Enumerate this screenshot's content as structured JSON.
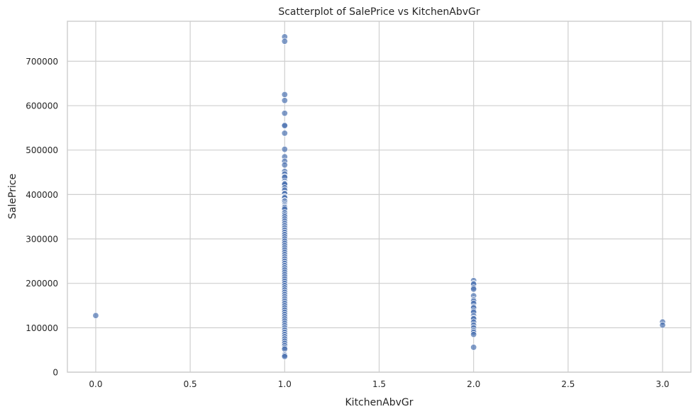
{
  "chart_data": {
    "type": "scatter",
    "title": "Scatterplot of SalePrice vs KitchenAbvGr",
    "xlabel": "KitchenAbvGr",
    "ylabel": "SalePrice",
    "xlim": [
      -0.15,
      3.15
    ],
    "ylim": [
      0,
      790000
    ],
    "xticks": [
      "0.0",
      "0.5",
      "1.0",
      "1.5",
      "2.0",
      "2.5",
      "3.0"
    ],
    "yticks": [
      "0",
      "100000",
      "200000",
      "300000",
      "400000",
      "500000",
      "600000",
      "700000"
    ],
    "grid": true,
    "point_color": "#4c72b0",
    "points": [
      {
        "x": 0,
        "y": 127500
      },
      {
        "x": 1,
        "y": 755000
      },
      {
        "x": 1,
        "y": 745000
      },
      {
        "x": 1,
        "y": 625000
      },
      {
        "x": 1,
        "y": 611657
      },
      {
        "x": 1,
        "y": 582933
      },
      {
        "x": 1,
        "y": 556581
      },
      {
        "x": 1,
        "y": 555000
      },
      {
        "x": 1,
        "y": 538000
      },
      {
        "x": 1,
        "y": 501837
      },
      {
        "x": 1,
        "y": 485000
      },
      {
        "x": 1,
        "y": 475000
      },
      {
        "x": 1,
        "y": 466500
      },
      {
        "x": 1,
        "y": 451950
      },
      {
        "x": 1,
        "y": 446261
      },
      {
        "x": 1,
        "y": 440000
      },
      {
        "x": 1,
        "y": 438780
      },
      {
        "x": 1,
        "y": 430000
      },
      {
        "x": 1,
        "y": 426000
      },
      {
        "x": 1,
        "y": 424870
      },
      {
        "x": 1,
        "y": 423000
      },
      {
        "x": 1,
        "y": 415298
      },
      {
        "x": 1,
        "y": 410000
      },
      {
        "x": 1,
        "y": 402861
      },
      {
        "x": 1,
        "y": 402000
      },
      {
        "x": 1,
        "y": 395192
      },
      {
        "x": 1,
        "y": 394617
      },
      {
        "x": 1,
        "y": 392500
      },
      {
        "x": 1,
        "y": 386250
      },
      {
        "x": 1,
        "y": 385000
      },
      {
        "x": 1,
        "y": 381000
      },
      {
        "x": 1,
        "y": 377426
      },
      {
        "x": 1,
        "y": 375000
      },
      {
        "x": 1,
        "y": 372402
      },
      {
        "x": 1,
        "y": 370878
      },
      {
        "x": 1,
        "y": 367294
      },
      {
        "x": 1,
        "y": 359100
      },
      {
        "x": 1,
        "y": 354000
      },
      {
        "x": 1,
        "y": 350000
      },
      {
        "x": 1,
        "y": 345000
      },
      {
        "x": 1,
        "y": 340000
      },
      {
        "x": 1,
        "y": 335000
      },
      {
        "x": 1,
        "y": 330000
      },
      {
        "x": 1,
        "y": 325000
      },
      {
        "x": 1,
        "y": 320000
      },
      {
        "x": 1,
        "y": 315000
      },
      {
        "x": 1,
        "y": 310000
      },
      {
        "x": 1,
        "y": 305000
      },
      {
        "x": 1,
        "y": 300000
      },
      {
        "x": 1,
        "y": 295000
      },
      {
        "x": 1,
        "y": 290000
      },
      {
        "x": 1,
        "y": 285000
      },
      {
        "x": 1,
        "y": 280000
      },
      {
        "x": 1,
        "y": 275000
      },
      {
        "x": 1,
        "y": 270000
      },
      {
        "x": 1,
        "y": 265000
      },
      {
        "x": 1,
        "y": 260000
      },
      {
        "x": 1,
        "y": 255000
      },
      {
        "x": 1,
        "y": 250000
      },
      {
        "x": 1,
        "y": 245000
      },
      {
        "x": 1,
        "y": 240000
      },
      {
        "x": 1,
        "y": 235000
      },
      {
        "x": 1,
        "y": 230000
      },
      {
        "x": 1,
        "y": 225000
      },
      {
        "x": 1,
        "y": 220000
      },
      {
        "x": 1,
        "y": 215000
      },
      {
        "x": 1,
        "y": 210000
      },
      {
        "x": 1,
        "y": 205000
      },
      {
        "x": 1,
        "y": 200000
      },
      {
        "x": 1,
        "y": 195000
      },
      {
        "x": 1,
        "y": 190000
      },
      {
        "x": 1,
        "y": 185000
      },
      {
        "x": 1,
        "y": 180000
      },
      {
        "x": 1,
        "y": 175000
      },
      {
        "x": 1,
        "y": 170000
      },
      {
        "x": 1,
        "y": 165000
      },
      {
        "x": 1,
        "y": 160000
      },
      {
        "x": 1,
        "y": 155000
      },
      {
        "x": 1,
        "y": 150000
      },
      {
        "x": 1,
        "y": 145000
      },
      {
        "x": 1,
        "y": 140000
      },
      {
        "x": 1,
        "y": 135000
      },
      {
        "x": 1,
        "y": 130000
      },
      {
        "x": 1,
        "y": 125000
      },
      {
        "x": 1,
        "y": 120000
      },
      {
        "x": 1,
        "y": 115000
      },
      {
        "x": 1,
        "y": 110000
      },
      {
        "x": 1,
        "y": 105000
      },
      {
        "x": 1,
        "y": 100000
      },
      {
        "x": 1,
        "y": 95000
      },
      {
        "x": 1,
        "y": 90000
      },
      {
        "x": 1,
        "y": 85000
      },
      {
        "x": 1,
        "y": 80000
      },
      {
        "x": 1,
        "y": 75000
      },
      {
        "x": 1,
        "y": 70000
      },
      {
        "x": 1,
        "y": 65000
      },
      {
        "x": 1,
        "y": 60000
      },
      {
        "x": 1,
        "y": 55000
      },
      {
        "x": 1,
        "y": 52000
      },
      {
        "x": 1,
        "y": 40000
      },
      {
        "x": 1,
        "y": 37900
      },
      {
        "x": 1,
        "y": 35311
      },
      {
        "x": 2,
        "y": 206300
      },
      {
        "x": 2,
        "y": 200000
      },
      {
        "x": 2,
        "y": 198000
      },
      {
        "x": 2,
        "y": 190000
      },
      {
        "x": 2,
        "y": 187000
      },
      {
        "x": 2,
        "y": 172000
      },
      {
        "x": 2,
        "y": 163000
      },
      {
        "x": 2,
        "y": 160000
      },
      {
        "x": 2,
        "y": 155000
      },
      {
        "x": 2,
        "y": 147000
      },
      {
        "x": 2,
        "y": 145000
      },
      {
        "x": 2,
        "y": 138000
      },
      {
        "x": 2,
        "y": 135000
      },
      {
        "x": 2,
        "y": 127000
      },
      {
        "x": 2,
        "y": 122000
      },
      {
        "x": 2,
        "y": 120000
      },
      {
        "x": 2,
        "y": 113000
      },
      {
        "x": 2,
        "y": 106000
      },
      {
        "x": 2,
        "y": 100000
      },
      {
        "x": 2,
        "y": 93500
      },
      {
        "x": 2,
        "y": 90000
      },
      {
        "x": 2,
        "y": 85000
      },
      {
        "x": 2,
        "y": 55993
      },
      {
        "x": 3,
        "y": 113000
      },
      {
        "x": 3,
        "y": 106000
      }
    ]
  }
}
